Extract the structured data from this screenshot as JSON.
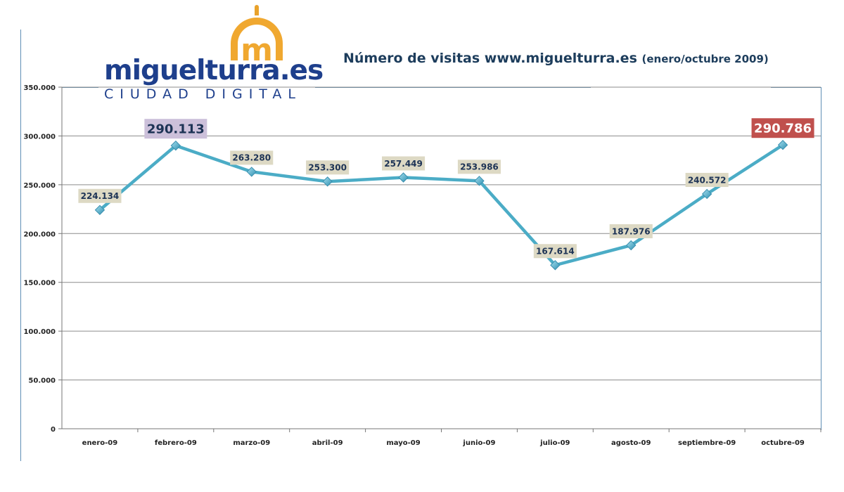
{
  "logo": {
    "wordmark": "miguelturra.es",
    "tagline": "CIUDAD DIGITAL",
    "emblem_letter": "m"
  },
  "colors": {
    "series_line": "#4bacc6",
    "marker": "#4bacc6",
    "data_label_bg": "#ddd9c4",
    "highlight_feb_bg": "#ccc0da",
    "highlight_oct_bg": "#c0504d",
    "gridline": "#8c8c8c",
    "logo_text": "#1e3f8c",
    "logo_emblem": "#f0a830"
  },
  "chart_data": {
    "type": "line",
    "title": "Número de visitas www.miguelturra.es",
    "subtitle": "(enero/octubre 2009)",
    "xlabel": "",
    "ylabel": "",
    "ylim": [
      0,
      350000
    ],
    "y_ticks": [
      0,
      50000,
      100000,
      150000,
      200000,
      250000,
      300000,
      350000
    ],
    "y_tick_labels": [
      "0",
      "50.000",
      "100.000",
      "150.000",
      "200.000",
      "250.000",
      "300.000",
      "350.000"
    ],
    "grid": true,
    "legend": "none",
    "categories": [
      "enero-09",
      "febrero-09",
      "marzo-09",
      "abril-09",
      "mayo-09",
      "junio-09",
      "julio-09",
      "agosto-09",
      "septiembre-09",
      "octubre-09"
    ],
    "series": [
      {
        "values": [
          224134,
          290113,
          263280,
          253300,
          257449,
          253986,
          167614,
          187976,
          240572,
          290786
        ],
        "labels": [
          "224.134",
          "290.113",
          "263.280",
          "253.300",
          "257.449",
          "253.986",
          "167.614",
          "187.976",
          "240.572",
          "290.786"
        ],
        "highlighted": [
          false,
          true,
          false,
          false,
          false,
          false,
          false,
          false,
          false,
          true
        ]
      }
    ]
  }
}
